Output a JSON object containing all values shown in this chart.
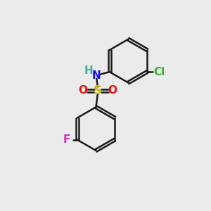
{
  "bg_color": "#ebebeb",
  "bond_color": "#1a1a1a",
  "bond_width": 1.8,
  "atoms": {
    "Cl": {
      "color": "#3cb030",
      "fontsize": 11,
      "fontweight": "bold"
    },
    "N": {
      "color": "#1010ee",
      "fontsize": 11,
      "fontweight": "bold"
    },
    "H": {
      "color": "#4aabab",
      "fontsize": 11,
      "fontweight": "bold"
    },
    "S": {
      "color": "#ccbb00",
      "fontsize": 12,
      "fontweight": "bold"
    },
    "O": {
      "color": "#dd1111",
      "fontsize": 11,
      "fontweight": "bold"
    },
    "F": {
      "color": "#cc33bb",
      "fontsize": 11,
      "fontweight": "bold"
    }
  },
  "figsize": [
    3.0,
    3.0
  ],
  "dpi": 100
}
